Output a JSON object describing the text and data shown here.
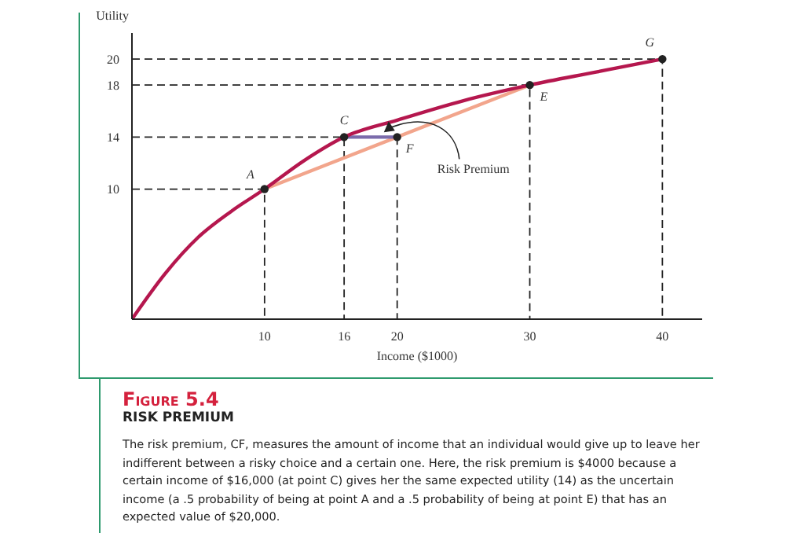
{
  "chart_data": {
    "type": "line",
    "title": "Figure 5.4",
    "subtitle": "RISK PREMIUM",
    "xlabel": "Income ($1000)",
    "ylabel": "Utility",
    "xlim": [
      0,
      43
    ],
    "ylim": [
      0,
      22
    ],
    "xticks": [
      10,
      16,
      20,
      30,
      40
    ],
    "yticks": [
      10,
      14,
      18,
      20
    ],
    "grid": false,
    "series": [
      {
        "type": "line",
        "color": "#222222",
        "line_style": "dashed",
        "marker": "none",
        "x": [
          0,
          10,
          10
        ],
        "values": [
          10,
          10,
          0
        ]
      },
      {
        "type": "line",
        "color": "#222222",
        "line_style": "dashed",
        "marker": "none",
        "x": [
          0,
          16,
          16
        ],
        "values": [
          14,
          14,
          0
        ]
      },
      {
        "type": "line",
        "color": "#222222",
        "line_style": "dashed",
        "marker": "none",
        "x": [
          20,
          20
        ],
        "values": [
          14,
          0
        ]
      },
      {
        "type": "line",
        "color": "#222222",
        "line_style": "dashed",
        "marker": "none",
        "x": [
          0,
          30,
          30
        ],
        "values": [
          18,
          18,
          0
        ]
      },
      {
        "type": "line",
        "color": "#222222",
        "line_style": "dashed",
        "marker": "none",
        "x": [
          0,
          40,
          40
        ],
        "values": [
          20,
          20,
          0
        ]
      },
      {
        "type": "line",
        "color": "#f2a58c",
        "line_style": "solid",
        "marker": "none",
        "x": [
          10,
          30
        ],
        "values": [
          10,
          18
        ]
      },
      {
        "type": "line",
        "color": "#7b6bab",
        "line_style": "solid",
        "marker": "none",
        "x": [
          16,
          20
        ],
        "values": [
          14,
          14
        ]
      },
      {
        "color": "#b5174e",
        "line_style": "solid",
        "marker": "none",
        "x": [
          0,
          2.5,
          5,
          7.5,
          10,
          13,
          16,
          20,
          25,
          30,
          35,
          40
        ],
        "values": [
          0,
          3.5,
          6.3,
          8.3,
          10,
          12.2,
          14,
          15.3,
          16.8,
          18,
          19,
          20
        ]
      },
      {
        "type": "scatter",
        "color": "#222222",
        "marker": "circle",
        "x": [
          10,
          16,
          20,
          30,
          40
        ],
        "values": [
          10,
          14,
          14,
          18,
          20
        ]
      }
    ],
    "annotations": [
      {
        "text": "A",
        "x": 10,
        "y": 10
      },
      {
        "text": "C",
        "x": 16,
        "y": 14
      },
      {
        "text": "F",
        "x": 20,
        "y": 14
      },
      {
        "text": "E",
        "x": 30,
        "y": 18
      },
      {
        "text": "G",
        "x": 40,
        "y": 20
      },
      {
        "text": "Risk Premium",
        "x": 19,
        "y": 14
      },
      "The risk premium, CF, measures the amount of income that an individual would give up to leave her indifferent between a risky choice and a certain one. Here, the risk premium is $4000 because a certain income of $16,000 (at point C) gives her the same expected utility (14) as the uncertain income (a .5 probability of being at point A and a .5 probability of being at point E) that has an expected value of $20,000."
    ]
  }
}
